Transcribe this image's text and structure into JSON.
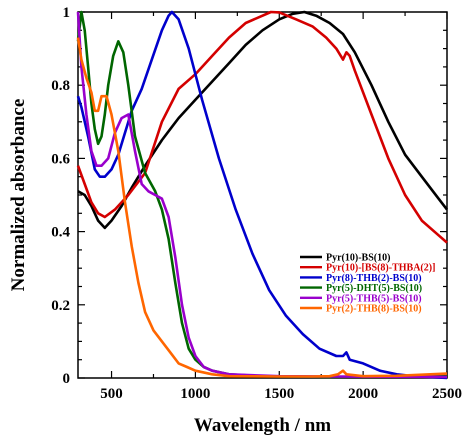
{
  "chart_data": {
    "type": "line",
    "xlabel": "Wavelength / nm",
    "ylabel": "Normalized absorbance",
    "xlim": [
      300,
      2500
    ],
    "ylim": [
      0,
      1.0
    ],
    "xticks": [
      {
        "value": 500,
        "label": "500"
      },
      {
        "value": 1000,
        "label": "1000"
      },
      {
        "value": 1500,
        "label": "1500"
      },
      {
        "value": 2000,
        "label": "2000"
      },
      {
        "value": 2500,
        "label": "2500"
      }
    ],
    "yticks": [
      {
        "value": 0,
        "label": "0"
      },
      {
        "value": 0.2,
        "label": "0.2"
      },
      {
        "value": 0.4,
        "label": "0.4"
      },
      {
        "value": 0.6,
        "label": "0.6"
      },
      {
        "value": 0.8,
        "label": "0.8"
      },
      {
        "value": 1.0,
        "label": "1"
      }
    ],
    "grid": false,
    "legend_position": "lower-right",
    "series": [
      {
        "name": "Pyr(10)-BS(10)",
        "color": "#000000",
        "points": [
          [
            300,
            0.51
          ],
          [
            340,
            0.5
          ],
          [
            380,
            0.47
          ],
          [
            420,
            0.43
          ],
          [
            460,
            0.41
          ],
          [
            500,
            0.43
          ],
          [
            560,
            0.47
          ],
          [
            620,
            0.52
          ],
          [
            700,
            0.58
          ],
          [
            800,
            0.65
          ],
          [
            900,
            0.71
          ],
          [
            1000,
            0.76
          ],
          [
            1100,
            0.81
          ],
          [
            1200,
            0.86
          ],
          [
            1300,
            0.91
          ],
          [
            1400,
            0.95
          ],
          [
            1500,
            0.98
          ],
          [
            1580,
            0.995
          ],
          [
            1650,
            1.0
          ],
          [
            1720,
            0.99
          ],
          [
            1800,
            0.97
          ],
          [
            1880,
            0.94
          ],
          [
            1950,
            0.89
          ],
          [
            2050,
            0.8
          ],
          [
            2150,
            0.7
          ],
          [
            2250,
            0.61
          ],
          [
            2350,
            0.55
          ],
          [
            2450,
            0.49
          ],
          [
            2500,
            0.46
          ]
        ]
      },
      {
        "name": "Pyr(10)-[BS(8)-THBA(2)]",
        "color": "#d40000",
        "points": [
          [
            300,
            0.58
          ],
          [
            340,
            0.53
          ],
          [
            380,
            0.48
          ],
          [
            420,
            0.45
          ],
          [
            460,
            0.44
          ],
          [
            520,
            0.46
          ],
          [
            600,
            0.5
          ],
          [
            700,
            0.56
          ],
          [
            800,
            0.7
          ],
          [
            900,
            0.79
          ],
          [
            1000,
            0.83
          ],
          [
            1100,
            0.88
          ],
          [
            1200,
            0.93
          ],
          [
            1300,
            0.97
          ],
          [
            1400,
            0.99
          ],
          [
            1450,
            1.0
          ],
          [
            1500,
            0.999
          ],
          [
            1600,
            0.98
          ],
          [
            1700,
            0.96
          ],
          [
            1780,
            0.93
          ],
          [
            1840,
            0.9
          ],
          [
            1880,
            0.87
          ],
          [
            1900,
            0.89
          ],
          [
            1920,
            0.88
          ],
          [
            1950,
            0.84
          ],
          [
            2050,
            0.72
          ],
          [
            2150,
            0.6
          ],
          [
            2250,
            0.5
          ],
          [
            2350,
            0.43
          ],
          [
            2450,
            0.39
          ],
          [
            2500,
            0.37
          ]
        ]
      },
      {
        "name": "Pyr(8)-THB(2)-BS(10)",
        "color": "#0000cc",
        "points": [
          [
            300,
            0.77
          ],
          [
            320,
            0.74
          ],
          [
            360,
            0.66
          ],
          [
            400,
            0.57
          ],
          [
            430,
            0.55
          ],
          [
            460,
            0.55
          ],
          [
            500,
            0.57
          ],
          [
            540,
            0.61
          ],
          [
            580,
            0.67
          ],
          [
            620,
            0.73
          ],
          [
            680,
            0.79
          ],
          [
            740,
            0.87
          ],
          [
            800,
            0.95
          ],
          [
            840,
            0.99
          ],
          [
            860,
            1.0
          ],
          [
            900,
            0.98
          ],
          [
            960,
            0.9
          ],
          [
            1040,
            0.76
          ],
          [
            1140,
            0.6
          ],
          [
            1240,
            0.46
          ],
          [
            1340,
            0.34
          ],
          [
            1440,
            0.24
          ],
          [
            1540,
            0.17
          ],
          [
            1640,
            0.12
          ],
          [
            1740,
            0.08
          ],
          [
            1840,
            0.06
          ],
          [
            1880,
            0.06
          ],
          [
            1900,
            0.07
          ],
          [
            1920,
            0.05
          ],
          [
            2000,
            0.04
          ],
          [
            2100,
            0.02
          ],
          [
            2200,
            0.01
          ],
          [
            2300,
            0.005
          ],
          [
            2500,
            0.0
          ]
        ]
      },
      {
        "name": "Pyr(5)-DHT(5)-BS(10)",
        "color": "#006600",
        "points": [
          [
            300,
            0.92
          ],
          [
            320,
            1.0
          ],
          [
            340,
            0.95
          ],
          [
            360,
            0.85
          ],
          [
            380,
            0.75
          ],
          [
            400,
            0.68
          ],
          [
            420,
            0.64
          ],
          [
            440,
            0.66
          ],
          [
            460,
            0.72
          ],
          [
            480,
            0.8
          ],
          [
            510,
            0.88
          ],
          [
            540,
            0.92
          ],
          [
            570,
            0.89
          ],
          [
            600,
            0.8
          ],
          [
            640,
            0.66
          ],
          [
            700,
            0.56
          ],
          [
            760,
            0.51
          ],
          [
            800,
            0.46
          ],
          [
            840,
            0.38
          ],
          [
            880,
            0.26
          ],
          [
            920,
            0.15
          ],
          [
            960,
            0.08
          ],
          [
            1000,
            0.05
          ],
          [
            1050,
            0.03
          ],
          [
            1100,
            0.02
          ],
          [
            1200,
            0.01
          ],
          [
            1400,
            0.005
          ],
          [
            1800,
            0.003
          ],
          [
            2100,
            0.004
          ],
          [
            2500,
            0.005
          ]
        ]
      },
      {
        "name": "Pyr(5)-THB(5)-BS(10)",
        "color": "#9900cc",
        "points": [
          [
            300,
            1.0
          ],
          [
            320,
            0.85
          ],
          [
            350,
            0.72
          ],
          [
            380,
            0.62
          ],
          [
            410,
            0.58
          ],
          [
            440,
            0.58
          ],
          [
            480,
            0.6
          ],
          [
            520,
            0.67
          ],
          [
            560,
            0.71
          ],
          [
            600,
            0.72
          ],
          [
            640,
            0.62
          ],
          [
            680,
            0.53
          ],
          [
            720,
            0.51
          ],
          [
            760,
            0.5
          ],
          [
            800,
            0.49
          ],
          [
            840,
            0.44
          ],
          [
            880,
            0.33
          ],
          [
            920,
            0.2
          ],
          [
            960,
            0.11
          ],
          [
            1000,
            0.06
          ],
          [
            1050,
            0.03
          ],
          [
            1100,
            0.02
          ],
          [
            1200,
            0.01
          ],
          [
            1500,
            0.005
          ],
          [
            1800,
            0.004
          ],
          [
            2500,
            0.003
          ]
        ]
      },
      {
        "name": "Pyr(2)-THB(8)-BS(10)",
        "color": "#ff6600",
        "points": [
          [
            300,
            0.93
          ],
          [
            320,
            0.87
          ],
          [
            350,
            0.82
          ],
          [
            380,
            0.78
          ],
          [
            400,
            0.73
          ],
          [
            420,
            0.73
          ],
          [
            440,
            0.77
          ],
          [
            470,
            0.77
          ],
          [
            500,
            0.72
          ],
          [
            540,
            0.62
          ],
          [
            580,
            0.48
          ],
          [
            620,
            0.36
          ],
          [
            660,
            0.26
          ],
          [
            700,
            0.18
          ],
          [
            750,
            0.13
          ],
          [
            800,
            0.1
          ],
          [
            850,
            0.07
          ],
          [
            900,
            0.04
          ],
          [
            950,
            0.03
          ],
          [
            1000,
            0.02
          ],
          [
            1100,
            0.01
          ],
          [
            1200,
            0.005
          ],
          [
            1500,
            0.004
          ],
          [
            1700,
            0.004
          ],
          [
            1800,
            0.005
          ],
          [
            1850,
            0.01
          ],
          [
            1880,
            0.02
          ],
          [
            1900,
            0.01
          ],
          [
            2000,
            0.005
          ],
          [
            2200,
            0.006
          ],
          [
            2500,
            0.012
          ]
        ]
      }
    ]
  }
}
